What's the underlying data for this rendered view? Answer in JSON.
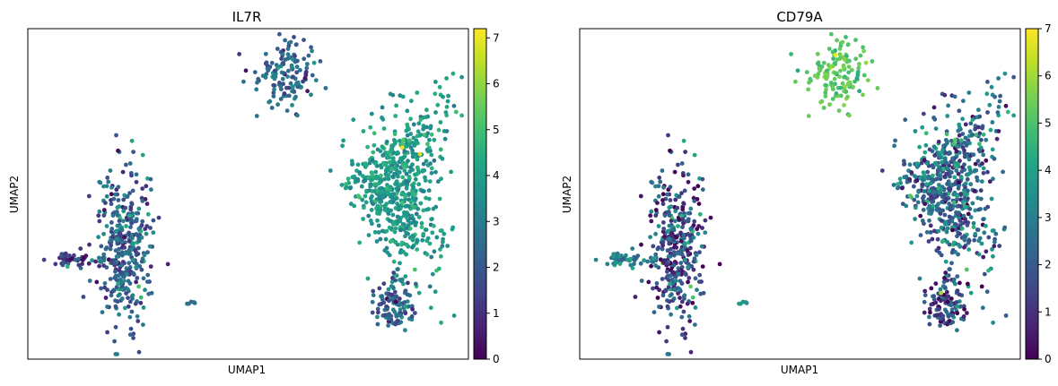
{
  "chart_data": [
    {
      "type": "scatter",
      "title": "IL7R",
      "xlabel": "UMAP1",
      "ylabel": "UMAP2",
      "colorbar": {
        "min": 0,
        "max": 7.2,
        "ticks": [
          0,
          1,
          2,
          3,
          4,
          5,
          6,
          7
        ],
        "colormap": "viridis"
      },
      "clusters": [
        {
          "name": "top-small",
          "center": [
            0.59,
            0.86
          ],
          "spread": [
            0.07,
            0.09
          ],
          "n": 140,
          "value_mean": 2.4,
          "value_sd": 0.8
        },
        {
          "name": "right-large",
          "center": [
            0.82,
            0.53
          ],
          "spread": [
            0.1,
            0.25
          ],
          "n": 650,
          "value_mean": 3.9,
          "value_sd": 0.5
        },
        {
          "name": "right-tail",
          "center": [
            0.83,
            0.17
          ],
          "spread": [
            0.05,
            0.08
          ],
          "n": 110,
          "value_mean": 2.4,
          "value_sd": 0.9
        },
        {
          "name": "left-main",
          "center": [
            0.22,
            0.33
          ],
          "spread": [
            0.06,
            0.24
          ],
          "n": 360,
          "value_mean": 2.3,
          "value_sd": 1.0
        },
        {
          "name": "left-arm",
          "center": [
            0.1,
            0.3
          ],
          "spread": [
            0.05,
            0.03
          ],
          "n": 45,
          "value_mean": 1.2,
          "value_sd": 0.9
        },
        {
          "name": "mini",
          "center": [
            0.37,
            0.17
          ],
          "spread": [
            0.01,
            0.01
          ],
          "n": 5,
          "value_mean": 2.8,
          "value_sd": 0.2
        }
      ],
      "highlights": [
        {
          "x": 0.85,
          "y": 0.64,
          "value": 7.0
        },
        {
          "x": 0.89,
          "y": 0.62,
          "value": 6.8
        },
        {
          "x": 0.09,
          "y": 0.28,
          "value": 4.6
        }
      ]
    },
    {
      "type": "scatter",
      "title": "CD79A",
      "xlabel": "UMAP1",
      "ylabel": "UMAP2",
      "colorbar": {
        "min": 0,
        "max": 7.0,
        "ticks": [
          0,
          1,
          2,
          3,
          4,
          5,
          6,
          7
        ],
        "colormap": "viridis"
      },
      "clusters": [
        {
          "name": "top-small",
          "center": [
            0.59,
            0.86
          ],
          "spread": [
            0.07,
            0.09
          ],
          "n": 140,
          "value_mean": 5.2,
          "value_sd": 0.4
        },
        {
          "name": "right-large",
          "center": [
            0.82,
            0.53
          ],
          "spread": [
            0.1,
            0.25
          ],
          "n": 650,
          "value_mean": 2.4,
          "value_sd": 1.1
        },
        {
          "name": "right-tail",
          "center": [
            0.83,
            0.17
          ],
          "spread": [
            0.05,
            0.08
          ],
          "n": 110,
          "value_mean": 1.6,
          "value_sd": 1.2
        },
        {
          "name": "left-main",
          "center": [
            0.22,
            0.33
          ],
          "spread": [
            0.06,
            0.24
          ],
          "n": 360,
          "value_mean": 1.7,
          "value_sd": 1.3
        },
        {
          "name": "left-arm",
          "center": [
            0.1,
            0.3
          ],
          "spread": [
            0.05,
            0.03
          ],
          "n": 45,
          "value_mean": 3.0,
          "value_sd": 0.8
        },
        {
          "name": "mini",
          "center": [
            0.37,
            0.17
          ],
          "spread": [
            0.01,
            0.01
          ],
          "n": 5,
          "value_mean": 3.8,
          "value_sd": 0.2
        }
      ],
      "highlights": [
        {
          "x": 0.58,
          "y": 0.92,
          "value": 6.9
        },
        {
          "x": 0.82,
          "y": 0.2,
          "value": 6.0
        }
      ]
    }
  ]
}
